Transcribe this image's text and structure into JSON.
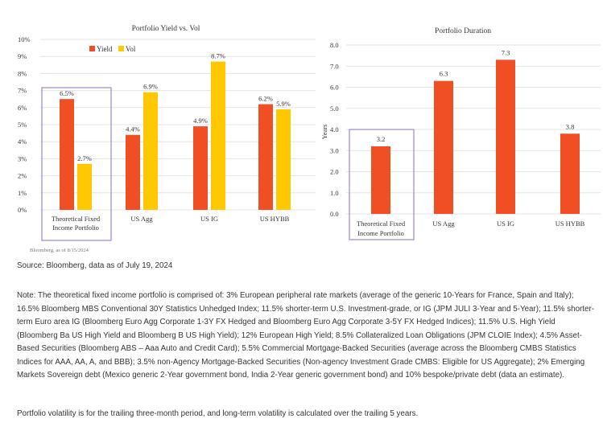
{
  "charts": {
    "yield_vol": {
      "title": "Portfolio Yield vs. Vol",
      "footnote": "Bloomberg, as of 8/15/2024",
      "legend": [
        "Yield",
        "Vol"
      ],
      "y_ticks": [
        "10%",
        "9%",
        "8%",
        "7%",
        "6%",
        "5%",
        "4%",
        "3%",
        "2%",
        "1%",
        "0%"
      ],
      "categories": [
        [
          "Theoretical Fixed",
          "Income Portfolio"
        ],
        [
          "US Agg"
        ],
        [
          "US IG"
        ],
        [
          "US HYBB"
        ]
      ],
      "yield_labels": [
        "6.5%",
        "4.4%",
        "4.9%",
        "6.2%"
      ],
      "vol_labels": [
        "2.7%",
        "6.9%",
        "8.7%",
        "5.9%"
      ]
    },
    "duration": {
      "title": "Portfolio Duration",
      "ylabel": "Years",
      "y_ticks": [
        "8.0",
        "7.0",
        "6.0",
        "5.0",
        "4.0",
        "3.0",
        "2.0",
        "1.0",
        "0.0"
      ],
      "categories": [
        [
          "Theoretical Fixed",
          "Income Portfolio"
        ],
        [
          "US Agg"
        ],
        [
          "US IG"
        ],
        [
          "US HYBB"
        ]
      ],
      "value_labels": [
        "3.2",
        "6.3",
        "7.3",
        "3.8"
      ]
    }
  },
  "colors": {
    "yield": "#f04e23",
    "vol": "#ffc800",
    "duration": "#f04e23",
    "highlight": "#9c86c8",
    "grid": "#e3e3e3"
  },
  "chart_data": [
    {
      "type": "bar",
      "title": "Portfolio Yield vs. Vol",
      "categories": [
        "Theoretical Fixed Income Portfolio",
        "US Agg",
        "US IG",
        "US HYBB"
      ],
      "series": [
        {
          "name": "Yield",
          "values": [
            6.5,
            4.4,
            4.9,
            6.2
          ]
        },
        {
          "name": "Vol",
          "values": [
            2.7,
            6.9,
            8.7,
            5.9
          ]
        }
      ],
      "xlabel": "",
      "ylabel": "",
      "ylim": [
        0,
        10
      ],
      "grid": true,
      "legend": "top-left"
    },
    {
      "type": "bar",
      "title": "Portfolio Duration",
      "categories": [
        "Theoretical Fixed Income Portfolio",
        "US Agg",
        "US IG",
        "US HYBB"
      ],
      "series": [
        {
          "values": [
            3.2,
            6.3,
            7.3,
            3.8
          ]
        }
      ],
      "xlabel": "",
      "ylabel": "Years",
      "ylim": [
        0,
        8
      ],
      "grid": true
    }
  ],
  "text": {
    "source": "Source: Bloomberg, data as of July 19, 2024",
    "note": "Note: The theoretical fixed income portfolio is comprised of: 3% European peripheral rate markets (average of the generic 10-Years for France, Spain and Italy); 16.5% Bloomberg MBS Conventional 30Y Statistics Unhedged Index; 11.5% shorter-term U.S. Investment-grade, or IG (JPM JULI 3-Year and 5-Year); 11.5% shorter-term Euro area IG (Bloomberg Euro Agg Corporate 1-3Y FX Hedged and Bloomberg Euro Agg Corporate 3-5Y FX Hedged Indices); 11.5% U.S. High Yield (Bloomberg Ba US High Yield and Bloomberg B US High Yield); 12% European High Yield; 8.5% Collateralized Loan Obligations (JPM CLOIE Index); 4.5% Asset-Based Securities (Bloomberg ABS – Aaa Auto and Credit Card); 5.5% Commercial Mortgage-Backed Securities (average across the Bloomberg CMBS Statistics Indices for AAA, AA, A, and BBB); 3.5% non-Agency Mortgage-Backed Securities (Non-agency Investment Grade CMBS: Eligible for US Aggregate); 2% Emerging Markets Sovereign debt (Mexico generic 2-Year government bond, India 2-Year generic government bond) and 10% bespoke/private debt (data an estimate).",
    "vol_note": "Portfolio volatility is for the trailing three-month period, and long-term volatility is calculated over the trailing 5 years."
  }
}
